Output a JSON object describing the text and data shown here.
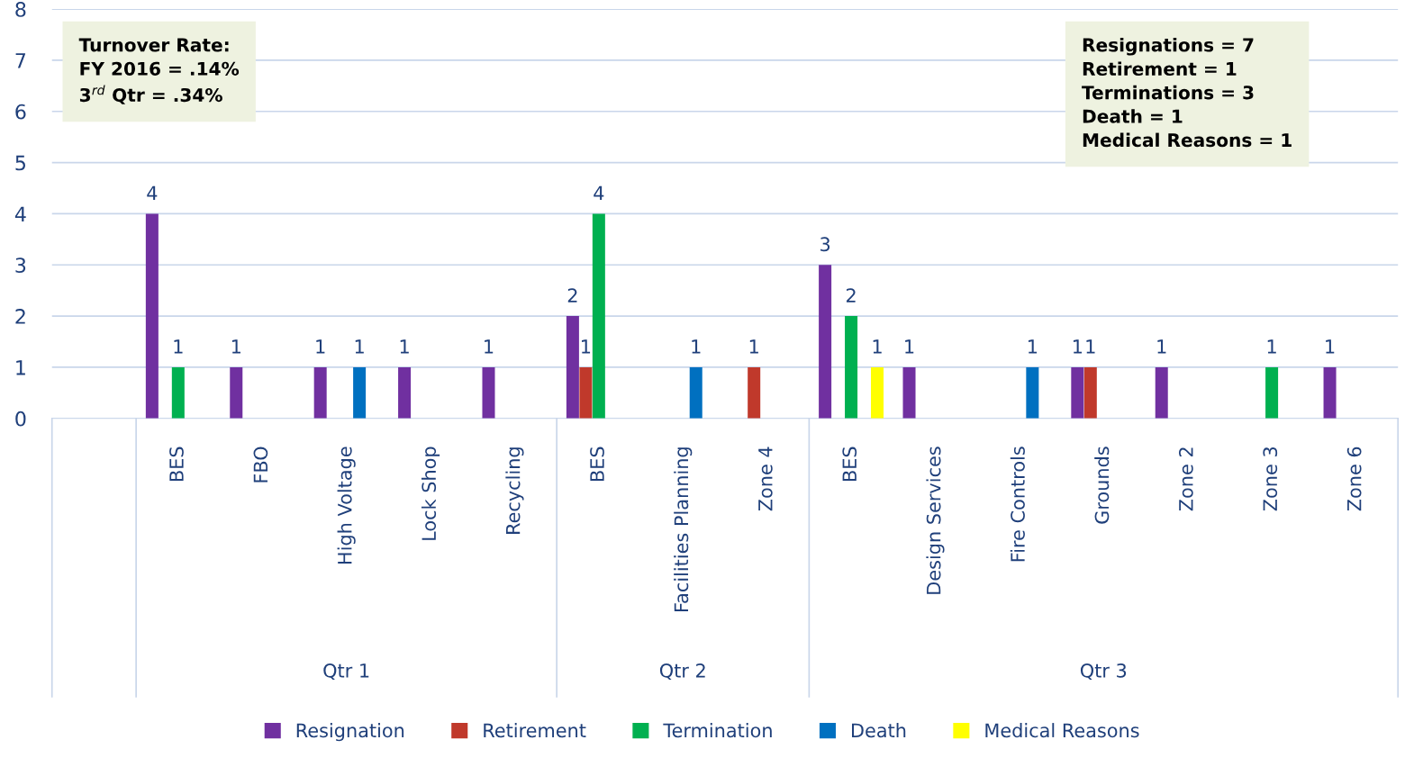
{
  "chart_data": {
    "type": "bar",
    "categories": [
      null,
      "BES",
      "FBO",
      "High Voltage",
      "Lock Shop",
      "Recycling",
      "BES",
      "Facilities Planning",
      "Zone 4",
      "BES",
      "Design Services",
      "Fire Controls",
      "Grounds",
      "Zone 2",
      "Zone 3",
      "Zone 6"
    ],
    "series": [
      {
        "name": "Resignation",
        "color": "#7030a0",
        "values": [
          null,
          4,
          1,
          1,
          1,
          1,
          2,
          null,
          null,
          3,
          1,
          null,
          1,
          1,
          null,
          1
        ]
      },
      {
        "name": "Retirement",
        "color": "#c0392b",
        "values": [
          null,
          null,
          null,
          null,
          null,
          null,
          1,
          null,
          1,
          null,
          null,
          null,
          1,
          null,
          null,
          null
        ]
      },
      {
        "name": "Termination",
        "color": "#00b050",
        "values": [
          null,
          1,
          null,
          null,
          null,
          null,
          4,
          null,
          null,
          2,
          null,
          null,
          null,
          null,
          1,
          null
        ]
      },
      {
        "name": "Death",
        "color": "#0070c0",
        "values": [
          null,
          null,
          null,
          1,
          null,
          null,
          null,
          1,
          null,
          null,
          null,
          1,
          null,
          null,
          null,
          null
        ]
      },
      {
        "name": "Medical Reasons",
        "color": "#ffff00",
        "values": [
          null,
          null,
          null,
          null,
          null,
          null,
          null,
          null,
          null,
          1,
          null,
          null,
          null,
          null,
          null,
          null
        ]
      }
    ],
    "ylim": [
      0,
      8
    ],
    "yticks": [
      0,
      1,
      2,
      3,
      4,
      5,
      6,
      7,
      8
    ],
    "grid": "y",
    "legend": "bottom",
    "data_labels": true,
    "annotations": [
      "Qtr 1",
      "Qtr 2",
      "Qtr 3",
      "Turnover Rate:\nFY 2016 = .14%\n3$^{rd}$ Qtr = .34%",
      "Resignations = 7\nRetirement = 1\nTerminations = 3\nDeath = 1\nMedical Reasons = 1"
    ]
  }
}
